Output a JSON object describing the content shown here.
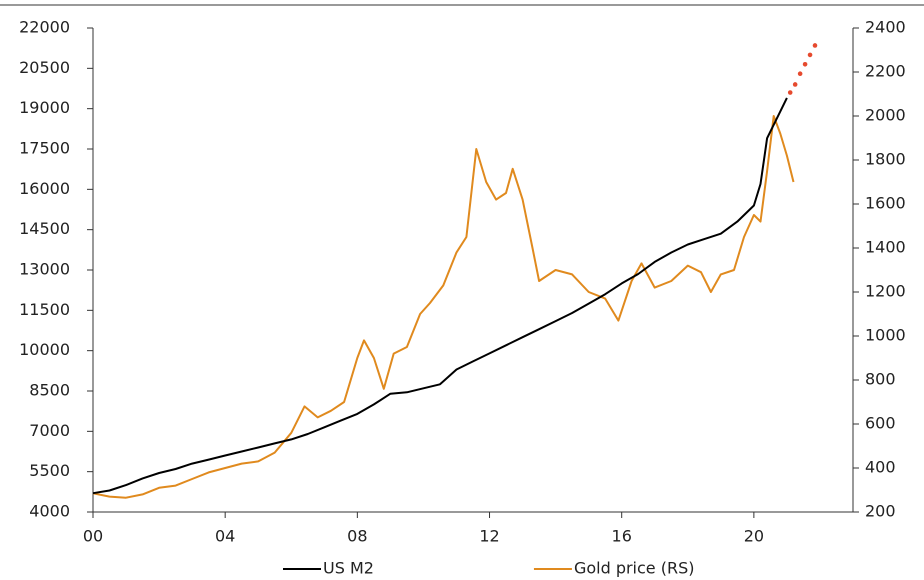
{
  "chart_data": {
    "type": "line",
    "xlim": [
      0,
      23
    ],
    "xticks": [
      {
        "value": 0,
        "label": "00"
      },
      {
        "value": 4,
        "label": "04"
      },
      {
        "value": 8,
        "label": "08"
      },
      12,
      16,
      20
    ],
    "ylim": [
      4000,
      22000
    ],
    "yticks": [
      4000,
      5500,
      7000,
      8500,
      10000,
      11500,
      13000,
      14500,
      16000,
      17500,
      19000,
      20500,
      22000
    ],
    "y2lim": [
      200,
      2400
    ],
    "y2ticks": [
      200,
      400,
      600,
      800,
      1000,
      1200,
      1400,
      1600,
      1800,
      2000,
      2200,
      2400
    ],
    "legend": "bottom",
    "series": [
      {
        "name": "US M2",
        "color": "#000000",
        "x": [
          0,
          0.5,
          1,
          1.5,
          2,
          2.5,
          3,
          3.5,
          4,
          4.5,
          5,
          5.5,
          6,
          6.5,
          7,
          7.5,
          8,
          8.5,
          9,
          9.5,
          10,
          10.5,
          11,
          11.5,
          12,
          12.5,
          13,
          13.5,
          14,
          14.5,
          15,
          15.5,
          16,
          16.5,
          17,
          17.5,
          18,
          18.5,
          19,
          19.5,
          20,
          20.2,
          20.4,
          20.6,
          20.8,
          21
        ],
        "values": [
          4700,
          4800,
          5000,
          5250,
          5450,
          5600,
          5800,
          5950,
          6100,
          6250,
          6400,
          6550,
          6700,
          6900,
          7150,
          7400,
          7650,
          8000,
          8400,
          8450,
          8600,
          8750,
          9300,
          9600,
          9900,
          10200,
          10500,
          10800,
          11100,
          11400,
          11750,
          12100,
          12500,
          12850,
          13300,
          13650,
          13950,
          14150,
          14350,
          14800,
          15400,
          16200,
          17900,
          18400,
          18900,
          19400
        ]
      },
      {
        "name": "Gold price (RS)",
        "color": "#e08a1e",
        "axis": "y2",
        "x": [
          0,
          0.5,
          1,
          1.5,
          2,
          2.5,
          3,
          3.5,
          4,
          4.5,
          5,
          5.5,
          6,
          6.4,
          6.8,
          7.2,
          7.6,
          8,
          8.2,
          8.5,
          8.8,
          9.1,
          9.5,
          9.9,
          10.2,
          10.6,
          11,
          11.3,
          11.6,
          11.9,
          12.2,
          12.5,
          12.7,
          13,
          13.3,
          13.5,
          14,
          14.5,
          15,
          15.5,
          15.9,
          16.3,
          16.6,
          17,
          17.5,
          18,
          18.4,
          18.7,
          19,
          19.4,
          19.7,
          20,
          20.2,
          20.4,
          20.6,
          20.8,
          21,
          21.2
        ],
        "values": [
          285,
          270,
          265,
          280,
          310,
          320,
          350,
          380,
          400,
          420,
          430,
          470,
          560,
          680,
          630,
          660,
          700,
          900,
          980,
          900,
          760,
          920,
          950,
          1100,
          1150,
          1230,
          1380,
          1450,
          1850,
          1700,
          1620,
          1650,
          1760,
          1620,
          1400,
          1250,
          1300,
          1280,
          1200,
          1170,
          1070,
          1250,
          1330,
          1220,
          1250,
          1320,
          1290,
          1200,
          1280,
          1300,
          1450,
          1550,
          1520,
          1750,
          2000,
          1920,
          1820,
          1700
        ]
      },
      {
        "color": "#e64a2e",
        "x": [
          21.1,
          21.25,
          21.4,
          21.55,
          21.7,
          21.85
        ],
        "values": [
          19600,
          19900,
          20300,
          20650,
          21000,
          21350
        ]
      }
    ]
  }
}
